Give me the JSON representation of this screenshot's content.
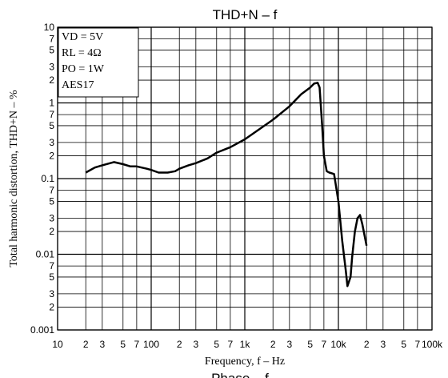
{
  "chart_data": {
    "type": "line",
    "title": "THD+N  –  f",
    "x_label": "Frequency, f  –  Hz",
    "y_label": "Total harmonic distortion, THD+N  –  %",
    "annotations": [
      "VD = 5V",
      "RL = 4Ω",
      "PO = 1W",
      "AES17"
    ],
    "footer_text": "Phase  –  f",
    "xscale": "log",
    "yscale": "log",
    "grid": true,
    "xlim": [
      10,
      100000
    ],
    "ylim": [
      0.001,
      10
    ],
    "xticks": [
      10,
      {
        "value": 20,
        "label": "2"
      },
      {
        "value": 30,
        "label": "3"
      },
      {
        "value": 50,
        "label": "5"
      },
      {
        "value": 70,
        "label": "7"
      },
      100,
      {
        "value": 200,
        "label": "2"
      },
      {
        "value": 300,
        "label": "3"
      },
      {
        "value": 500,
        "label": "5"
      },
      {
        "value": 700,
        "label": "7"
      },
      {
        "value": 1000,
        "label": "1k"
      },
      {
        "value": 2000,
        "label": "2"
      },
      {
        "value": 3000,
        "label": "3"
      },
      {
        "value": 5000,
        "label": "5"
      },
      {
        "value": 7000,
        "label": "7"
      },
      {
        "value": 10000,
        "label": "10k"
      },
      {
        "value": 20000,
        "label": "2"
      },
      {
        "value": 30000,
        "label": "3"
      },
      {
        "value": 50000,
        "label": "5"
      },
      {
        "value": 70000,
        "label": "7"
      },
      {
        "value": 100000,
        "label": "100k"
      }
    ],
    "yticks": [
      0.001,
      {
        "value": 0.002,
        "label": "2"
      },
      {
        "value": 0.003,
        "label": "3"
      },
      {
        "value": 0.005,
        "label": "5"
      },
      {
        "value": 0.007,
        "label": "7"
      },
      0.01,
      {
        "value": 0.02,
        "label": "2"
      },
      {
        "value": 0.03,
        "label": "3"
      },
      {
        "value": 0.05,
        "label": "5"
      },
      {
        "value": 0.07,
        "label": "7"
      },
      0.1,
      {
        "value": 0.2,
        "label": "2"
      },
      {
        "value": 0.3,
        "label": "3"
      },
      {
        "value": 0.5,
        "label": "5"
      },
      {
        "value": 0.7,
        "label": "7"
      },
      1,
      2,
      3,
      5,
      7,
      10
    ],
    "series": [
      {
        "color": "#000000",
        "x": [
          20,
          25,
          30,
          40,
          50,
          60,
          70,
          90,
          100,
          120,
          150,
          180,
          200,
          250,
          300,
          400,
          500,
          700,
          1000,
          2000,
          3000,
          4000,
          5000,
          5500,
          6000,
          6300,
          6700,
          7000,
          7500,
          8000,
          9000,
          10000,
          11000,
          12000,
          12500,
          13500,
          14000,
          15000,
          16000,
          17000,
          18000,
          20000
        ],
        "values": [
          0.12,
          0.14,
          0.15,
          0.165,
          0.155,
          0.145,
          0.145,
          0.135,
          0.13,
          0.12,
          0.12,
          0.125,
          0.135,
          0.15,
          0.16,
          0.185,
          0.22,
          0.26,
          0.33,
          0.6,
          0.9,
          1.3,
          1.6,
          1.8,
          1.85,
          1.6,
          0.5,
          0.2,
          0.125,
          0.12,
          0.115,
          0.05,
          0.015,
          0.006,
          0.0038,
          0.005,
          0.009,
          0.02,
          0.03,
          0.033,
          0.025,
          0.013
        ]
      }
    ]
  }
}
